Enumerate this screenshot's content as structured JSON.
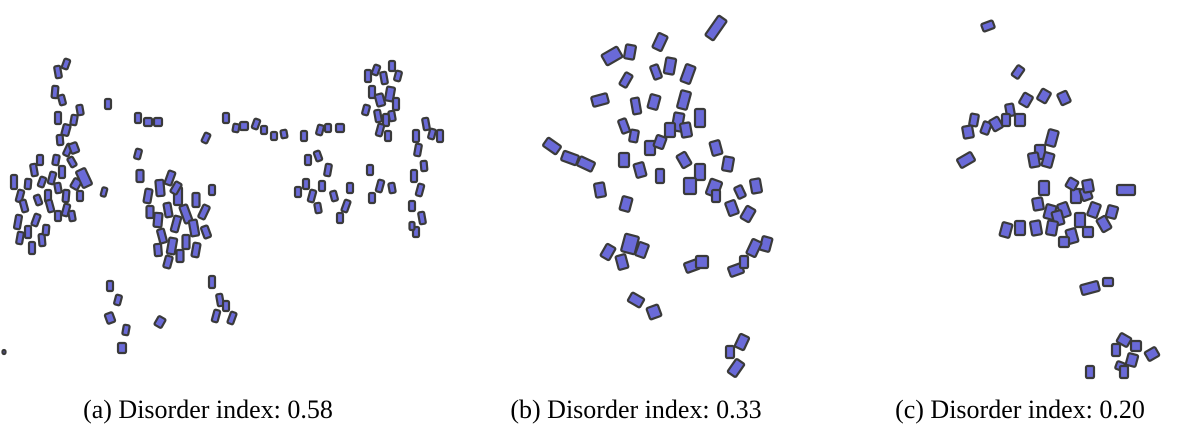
{
  "panels": [
    {
      "caption": "(a) Disorder index: 0.58"
    },
    {
      "caption": "(b) Disorder index: 0.33"
    },
    {
      "caption": "(c) Disorder index: 0.20"
    }
  ],
  "colors": {
    "building_fill": "#6a6ad8",
    "building_outline": "#3a3a3a",
    "background": "#ffffff"
  }
}
